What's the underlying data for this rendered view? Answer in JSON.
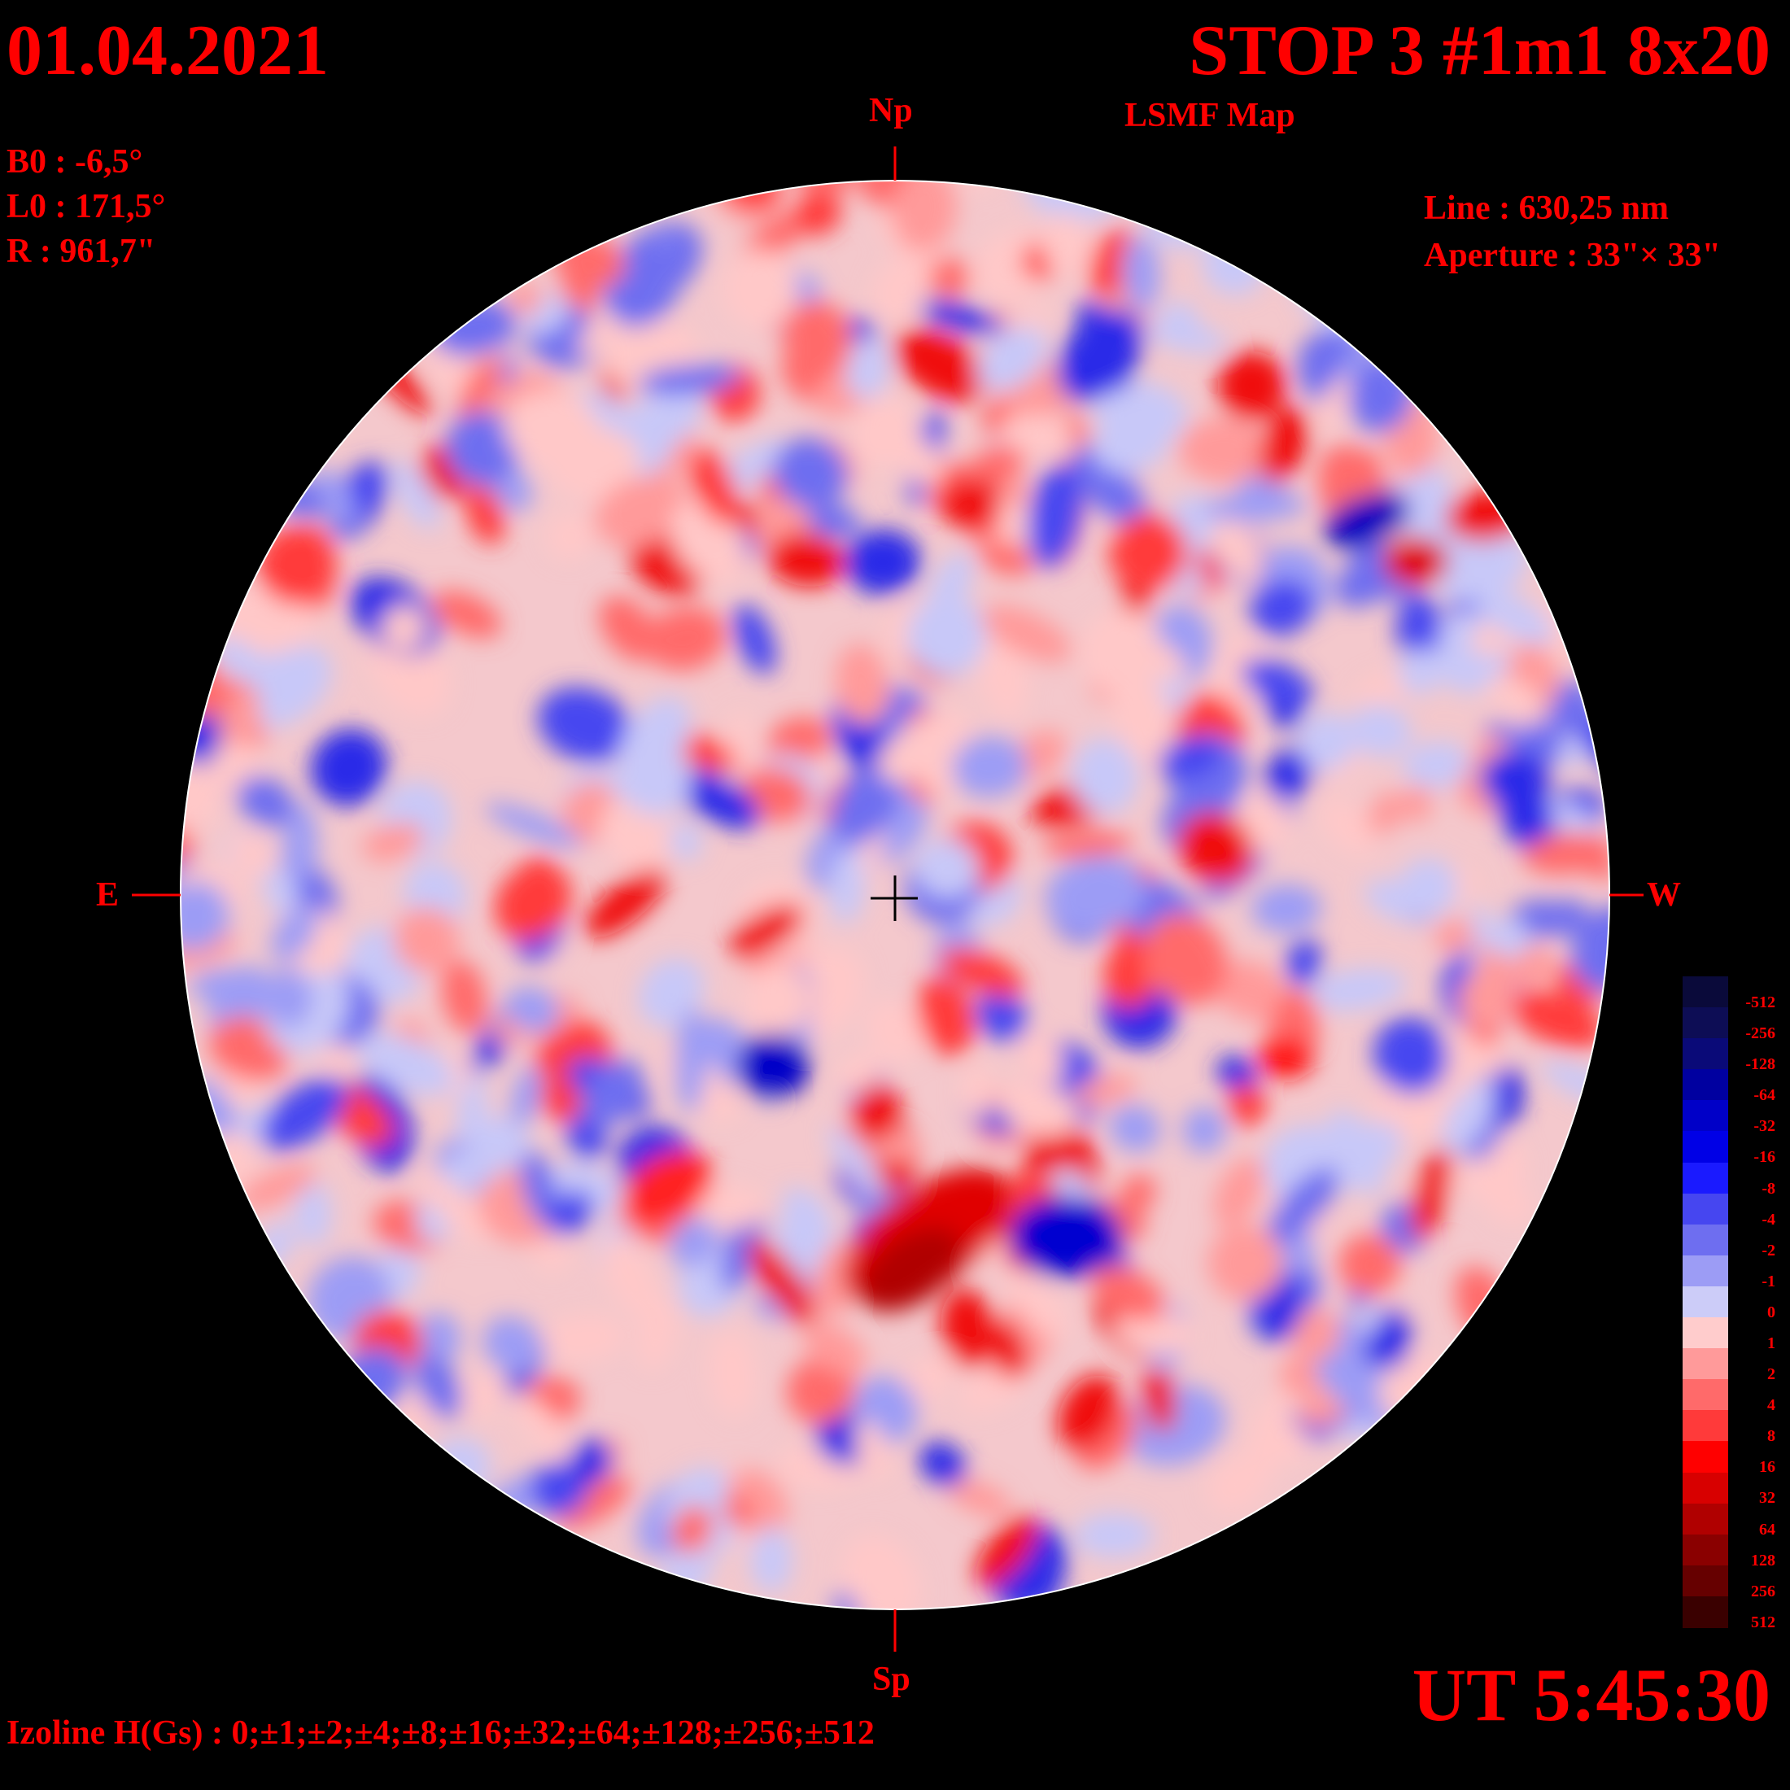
{
  "header": {
    "date": "01.04.2021",
    "title": "STOP 3 #1m1 8x20",
    "subtitle": "LSMF  Map",
    "ut": "UT 5:45:30"
  },
  "params": {
    "b0": "B0 : -6,5°",
    "l0": "L0 : 171,5°",
    "radius": "R  : 961,7\"",
    "line": "Line :  630,25 nm",
    "aperture": "Aperture : 33\"× 33\""
  },
  "directions": {
    "north": "Np",
    "south": "Sp",
    "east": "E",
    "west": "W"
  },
  "footer": {
    "izoline": "Izoline H(Gs) : 0;±1;±2;±4;±8;±16;±32;±64;±128;±256;±512"
  },
  "legend": {
    "levels": [
      {
        "label": "-512",
        "color": "#0a0a3a"
      },
      {
        "label": "-256",
        "color": "#0d0d55"
      },
      {
        "label": "-128",
        "color": "#0a0a78"
      },
      {
        "label": "-64",
        "color": "#0000a0"
      },
      {
        "label": "-32",
        "color": "#0000c8"
      },
      {
        "label": "-16",
        "color": "#0000e6"
      },
      {
        "label": "-8",
        "color": "#1a1aff"
      },
      {
        "label": "-4",
        "color": "#4646f0"
      },
      {
        "label": "-2",
        "color": "#6e6ef0"
      },
      {
        "label": "-1",
        "color": "#9c9cf5"
      },
      {
        "label": "0",
        "color": "#ccccf8"
      },
      {
        "label": "1",
        "color": "#ffcccc"
      },
      {
        "label": "2",
        "color": "#ff9a9a"
      },
      {
        "label": "4",
        "color": "#ff6a6a"
      },
      {
        "label": "8",
        "color": "#ff3a3a"
      },
      {
        "label": "16",
        "color": "#ff0000"
      },
      {
        "label": "32",
        "color": "#d80000"
      },
      {
        "label": "64",
        "color": "#b00000"
      },
      {
        "label": "128",
        "color": "#8a0000"
      },
      {
        "label": "256",
        "color": "#660000"
      },
      {
        "label": "512",
        "color": "#3a0000"
      }
    ]
  },
  "colors": {
    "text": "#ff0000",
    "background": "#000000",
    "contour": "#ffffff"
  }
}
